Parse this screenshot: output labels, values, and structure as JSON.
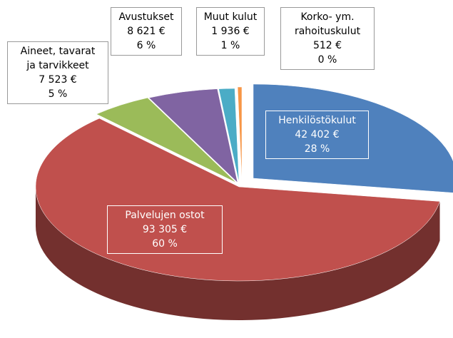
{
  "chart_data": {
    "type": "pie",
    "categories": [
      "Henkilöstökulut",
      "Palvelujen ostot",
      "Aineet, tavarat\nja tarvikkeet",
      "Avustukset",
      "Muut kulut",
      "Korko- ym.\nrahoituskulut"
    ],
    "values": [
      42402,
      93305,
      7523,
      8621,
      1936,
      512
    ],
    "value_labels": [
      "42 402 €",
      "93 305 €",
      "7 523 €",
      "8 621 €",
      "1 936 €",
      "512 €"
    ],
    "percents": [
      28,
      60,
      5,
      6,
      1,
      0
    ],
    "percent_labels": [
      "28 %",
      "60 %",
      "5 %",
      "6 %",
      "1 %",
      "0 %"
    ],
    "colors": [
      "#4f81bd",
      "#c0504d",
      "#9bbb59",
      "#8064a2",
      "#4bacc6",
      "#f79646"
    ]
  }
}
